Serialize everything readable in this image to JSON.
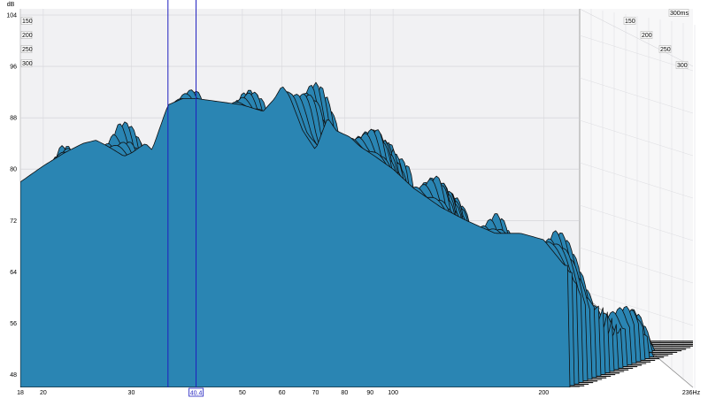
{
  "chart_data": {
    "type": "area",
    "subtype": "waterfall",
    "y_unit": "dB",
    "x_unit": "Hz",
    "t_unit": "ms",
    "x_scale": "log",
    "xlim": [
      18,
      236
    ],
    "ylim": [
      46,
      104
    ],
    "x_ticks": [
      "18",
      "20",
      "30",
      "50",
      "60",
      "70",
      "80",
      "90",
      "100",
      "200"
    ],
    "x_end_label": "236Hz",
    "y_ticks": [
      "104",
      "96",
      "88",
      "80",
      "72",
      "64",
      "56",
      "48"
    ],
    "time_ticks_left": [
      "150",
      "200",
      "250",
      "300"
    ],
    "time_ticks_right": [
      "150",
      "200",
      "250",
      "300"
    ],
    "time_end_label": "300ms",
    "cursor_label": "40.4",
    "cursor_x": 40.4,
    "marker_x": 35.5,
    "slice_count": 30,
    "peak_levels": {
      "front": [
        {
          "x": 18,
          "y": 78
        },
        {
          "x": 20,
          "y": 80.5
        },
        {
          "x": 22,
          "y": 82.5
        },
        {
          "x": 24,
          "y": 84
        },
        {
          "x": 25.5,
          "y": 84.5
        },
        {
          "x": 27,
          "y": 83.5
        },
        {
          "x": 29,
          "y": 82
        },
        {
          "x": 30,
          "y": 82.5
        },
        {
          "x": 32,
          "y": 84
        },
        {
          "x": 33,
          "y": 83
        },
        {
          "x": 35.5,
          "y": 90
        },
        {
          "x": 38,
          "y": 91
        },
        {
          "x": 40.4,
          "y": 91
        },
        {
          "x": 45,
          "y": 90.5
        },
        {
          "x": 50,
          "y": 90
        },
        {
          "x": 55,
          "y": 89
        },
        {
          "x": 58,
          "y": 91
        },
        {
          "x": 60,
          "y": 93
        },
        {
          "x": 62,
          "y": 91.5
        },
        {
          "x": 66,
          "y": 86
        },
        {
          "x": 70,
          "y": 83
        },
        {
          "x": 74,
          "y": 88
        },
        {
          "x": 77,
          "y": 86
        },
        {
          "x": 82,
          "y": 85
        },
        {
          "x": 86,
          "y": 83.5
        },
        {
          "x": 92,
          "y": 82
        },
        {
          "x": 100,
          "y": 80
        },
        {
          "x": 110,
          "y": 77
        },
        {
          "x": 125,
          "y": 74
        },
        {
          "x": 140,
          "y": 72
        },
        {
          "x": 160,
          "y": 70
        },
        {
          "x": 180,
          "y": 70
        },
        {
          "x": 200,
          "y": 69
        },
        {
          "x": 220,
          "y": 65
        }
      ]
    },
    "colors": {
      "fill": "#2a85b3",
      "outline": "#0f0f0f",
      "wall": "#f1f1f3",
      "cursor": "#1f1fbf"
    }
  }
}
